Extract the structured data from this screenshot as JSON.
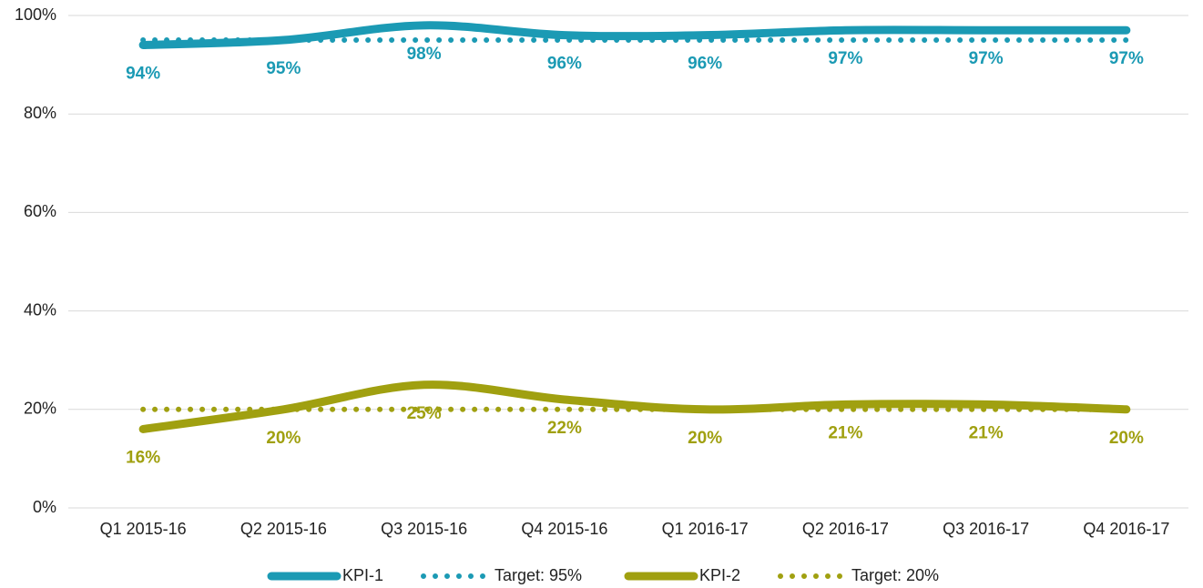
{
  "chart_data": {
    "type": "line",
    "smooth": true,
    "grid": true,
    "legend": "bottom",
    "categories": [
      "Q1 2015-16",
      "Q2 2015-16",
      "Q3 2015-16",
      "Q4 2015-16",
      "Q1 2016-17",
      "Q2 2016-17",
      "Q3 2016-17",
      "Q4 2016-17"
    ],
    "ylim": [
      0,
      100
    ],
    "yticks": [
      {
        "value": 0,
        "label": "0%"
      },
      {
        "value": 20,
        "label": "20%"
      },
      {
        "value": 40,
        "label": "40%"
      },
      {
        "value": 60,
        "label": "60%"
      },
      {
        "value": 80,
        "label": "80%"
      },
      {
        "value": 100,
        "label": "100%"
      }
    ],
    "series": [
      {
        "name": "KPI-1",
        "color": "#1b9ab4",
        "line_style": "solid",
        "values": [
          94,
          95,
          98,
          96,
          96,
          97,
          97,
          97
        ],
        "value_labels": [
          "94%",
          "95%",
          "98%",
          "96%",
          "96%",
          "97%",
          "97%",
          "97%"
        ]
      },
      {
        "name": "Target: 95%",
        "color": "#1b9ab4",
        "line_style": "dotted",
        "values": [
          95,
          95,
          95,
          95,
          95,
          95,
          95,
          95
        ]
      },
      {
        "name": "KPI-2",
        "color": "#a0a010",
        "line_style": "solid",
        "values": [
          16,
          20,
          25,
          22,
          20,
          21,
          21,
          20
        ],
        "value_labels": [
          "16%",
          "20%",
          "25%",
          "22%",
          "20%",
          "21%",
          "21%",
          "20%"
        ]
      },
      {
        "name": "Target: 20%",
        "color": "#a0a010",
        "line_style": "dotted",
        "values": [
          20,
          20,
          20,
          20,
          20,
          20,
          20,
          20
        ]
      }
    ]
  }
}
